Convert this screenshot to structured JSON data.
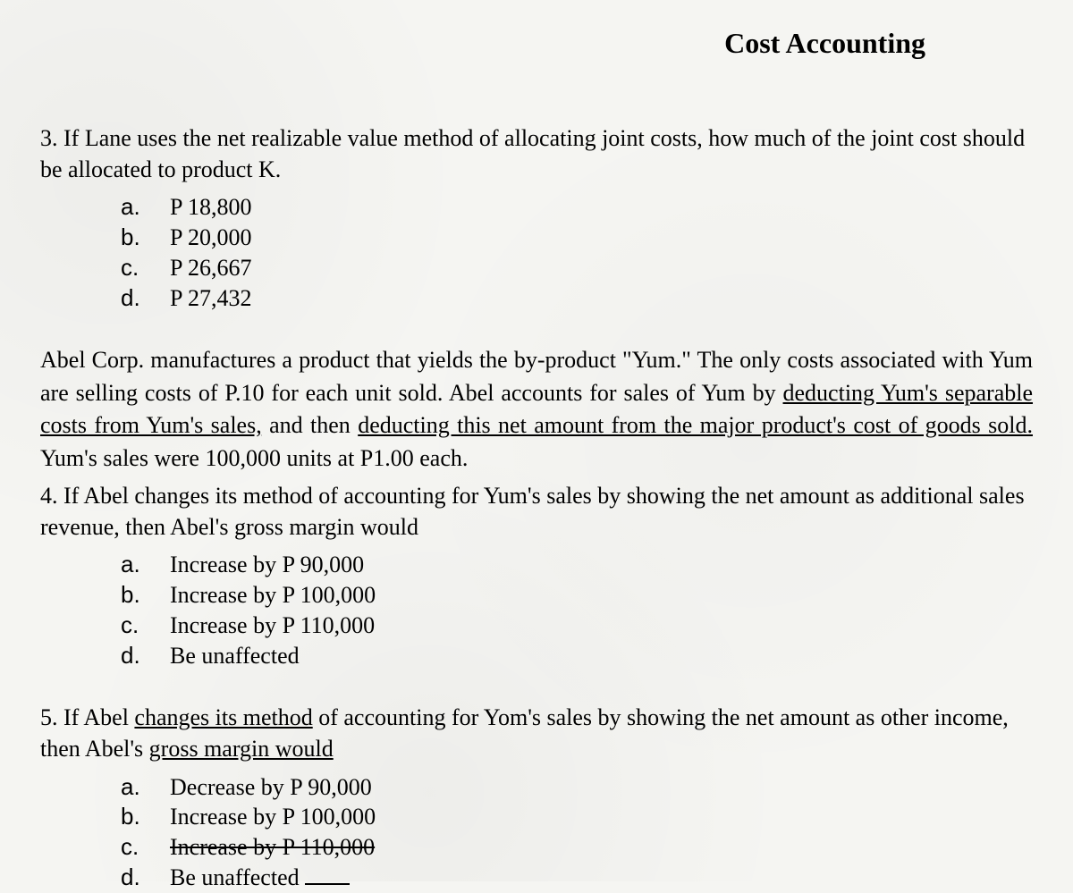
{
  "header": "Cost Accounting",
  "q3": {
    "number": "3.",
    "text": "If Lane uses the net realizable value method of allocating joint costs, how much of the joint cost should be allocated to product K.",
    "options": [
      {
        "letter": "a.",
        "text": "P 18,800"
      },
      {
        "letter": "b.",
        "text": "P 20,000"
      },
      {
        "letter": "c.",
        "text": "P 26,667"
      },
      {
        "letter": "d.",
        "text": "P 27,432"
      }
    ]
  },
  "passage": {
    "line1_a": "Abel Corp. manufactures a product that yields the by-product \"Yum.\"  The only costs associated with Yum are selling costs of P.10 for each unit sold.  Abel accounts for sales of Yum by ",
    "line1_u1": "deducting Yum's separable costs from Yum's sales,",
    "line1_b": " and then ",
    "line1_u2": "deducting this net amount from the major product's cost of goods sold.",
    "line1_c": "  Yum's sales were 100,000 units at P1.00 each."
  },
  "q4": {
    "number": "4.",
    "text": "If Abel changes its method of accounting for Yum's sales by showing the net amount as additional sales revenue, then Abel's gross margin would",
    "options": [
      {
        "letter": "a.",
        "text": "Increase by P   90,000"
      },
      {
        "letter": "b.",
        "text": "Increase by P 100,000"
      },
      {
        "letter": "c.",
        "text": "Increase by P 110,000"
      },
      {
        "letter": "d.",
        "text": "Be unaffected"
      }
    ]
  },
  "q5": {
    "number": "5.",
    "text_a": "If Abel ",
    "text_u": "changes its method",
    "text_b": " of accounting for Yom's sales by showing the net amount as other income, then Abel's ",
    "text_u2": "gross margin would",
    "options": [
      {
        "letter": "a.",
        "text": "Decrease by P  90,000"
      },
      {
        "letter": "b.",
        "text": "Increase by P 100,000"
      },
      {
        "letter": "c.",
        "text": "Increase by P 110,000"
      },
      {
        "letter": "d.",
        "text": "Be unaffected"
      }
    ]
  }
}
